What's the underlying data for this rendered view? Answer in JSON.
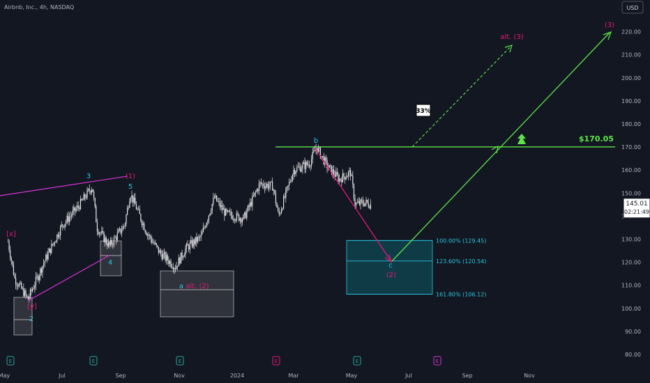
{
  "header": {
    "symbol_line": "Airbnb, Inc., 4h, NASDAQ"
  },
  "currency_button": {
    "label": "USD"
  },
  "colors": {
    "background": "#131722",
    "candle": "#e8e8ea",
    "green": "#5ee34a",
    "magenta": "#e5187a",
    "pink_line": "#d633d6",
    "cyan": "#29c6e0",
    "teal_box": "#0f3f4a",
    "axis_text": "#b2b5be"
  },
  "price_tag": {
    "price": "145.01",
    "countdown": "02:21:49"
  },
  "chart_data": {
    "type": "candlestick",
    "title": "",
    "y_axis": {
      "ticks": [
        80,
        90,
        100,
        110,
        120,
        130,
        140,
        150,
        160,
        170,
        180,
        190,
        200,
        210,
        220
      ],
      "tick_labels": [
        "80.00",
        "90.00",
        "100.00",
        "110.00",
        "120.00",
        "130.00",
        "140.00",
        "150.00",
        "160.00",
        "170.00",
        "180.00",
        "190.00",
        "200.00",
        "210.00",
        "220.00"
      ],
      "range": [
        77.5,
        225
      ]
    },
    "x_axis": {
      "tick_labels": [
        "May",
        "Jul",
        "Sep",
        "Nov",
        "2024",
        "Mar",
        "May",
        "Jul",
        "Sep",
        "Nov"
      ],
      "range_approx": [
        "2023-05",
        "2024-11"
      ]
    },
    "price_path_approx": [
      {
        "date": "2023-05-05",
        "price": 129
      },
      {
        "date": "2023-05-12",
        "price": 113
      },
      {
        "date": "2023-05-26",
        "price": 104
      },
      {
        "date": "2023-06-12",
        "price": 120
      },
      {
        "date": "2023-07-01",
        "price": 136
      },
      {
        "date": "2023-07-18",
        "price": 144
      },
      {
        "date": "2023-08-02",
        "price": 153
      },
      {
        "date": "2023-08-07",
        "price": 135
      },
      {
        "date": "2023-08-20",
        "price": 127
      },
      {
        "date": "2023-09-05",
        "price": 136
      },
      {
        "date": "2023-09-11",
        "price": 150
      },
      {
        "date": "2023-09-28",
        "price": 133
      },
      {
        "date": "2023-10-12",
        "price": 124
      },
      {
        "date": "2023-10-28",
        "price": 118
      },
      {
        "date": "2023-11-08",
        "price": 126
      },
      {
        "date": "2023-11-24",
        "price": 131
      },
      {
        "date": "2023-12-08",
        "price": 148
      },
      {
        "date": "2023-12-20",
        "price": 141
      },
      {
        "date": "2024-01-08",
        "price": 139
      },
      {
        "date": "2024-01-25",
        "price": 154
      },
      {
        "date": "2024-02-08",
        "price": 153
      },
      {
        "date": "2024-02-14",
        "price": 140
      },
      {
        "date": "2024-03-01",
        "price": 160
      },
      {
        "date": "2024-03-18",
        "price": 163
      },
      {
        "date": "2024-03-25",
        "price": 170
      },
      {
        "date": "2024-04-05",
        "price": 162
      },
      {
        "date": "2024-04-18",
        "price": 156
      },
      {
        "date": "2024-04-30",
        "price": 159
      },
      {
        "date": "2024-05-05",
        "price": 145
      },
      {
        "date": "2024-05-15",
        "price": 146
      },
      {
        "date": "2024-05-22",
        "price": 145
      }
    ],
    "earnings_markers": [
      {
        "label": "E",
        "color": "#26a69a"
      },
      {
        "label": "E",
        "color": "#26a69a"
      },
      {
        "label": "E",
        "color": "#26a69a"
      },
      {
        "label": "E",
        "color": "#e5187a"
      },
      {
        "label": "E",
        "color": "#26a69a"
      },
      {
        "label": "E",
        "color": "#d633d6"
      }
    ]
  },
  "annotations": {
    "wave_labels": [
      "[x]",
      "[y]",
      "2",
      "3",
      "(1)",
      "5",
      "4",
      "a",
      "alt. (2)",
      "b",
      "c",
      "(2)",
      "alt. (3)",
      "(3)"
    ],
    "resistance_label": "$170.05",
    "probability_badge": "33%",
    "fib_levels": [
      {
        "label": "100.00% (129.45)",
        "price": 129.45
      },
      {
        "label": "123.60% (120.54)",
        "price": 120.54
      },
      {
        "label": "161.80% (106.12)",
        "price": 106.12
      }
    ]
  }
}
